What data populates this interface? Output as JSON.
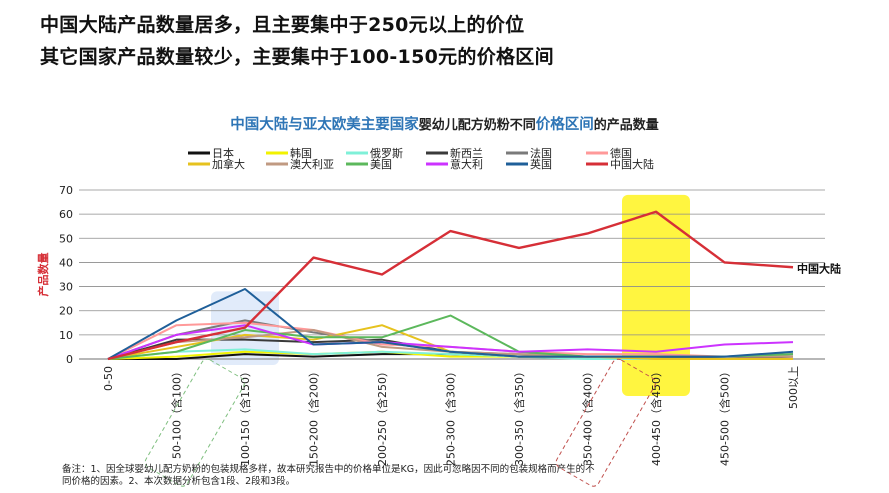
{
  "headline_1": "中国大陆产品数量居多，且主要集中于250元以上的价位",
  "headline_2": "其它国家产品数量较少，主要集中于100-150元的价格区间",
  "note": "备注：1、因全球婴幼儿配方奶粉的包装规格多样，故本研究报告中的价格单位是KG，因此可忽略因不同的包装规格而产生的不同价格的因素。2、本次数据分析包含1段、2段和3段。",
  "chart_data": {
    "type": "line",
    "title_parts": [
      {
        "text": "中国大陆与亚太欧美主要国家",
        "style": "blue"
      },
      {
        "text": "婴幼儿配方奶粉不同",
        "style": "plain"
      },
      {
        "text": "价格区间",
        "style": "blue"
      },
      {
        "text": "的产品数量",
        "style": "plain"
      }
    ],
    "ylabel": "产品数量",
    "xlabel": "",
    "ylim": [
      0,
      70
    ],
    "yticks": [
      0,
      10,
      20,
      30,
      40,
      50,
      60,
      70
    ],
    "grid": true,
    "legend_position": "top",
    "categories": [
      "0-50",
      "50-100（含100）",
      "100-150（含150）",
      "150-200（含200）",
      "200-250（含250）",
      "250-300（含300）",
      "300-350（含350）",
      "350-400（含400）",
      "400-450（含450）",
      "450-500（含500）",
      "500以上"
    ],
    "series": [
      {
        "name": "日本",
        "color": "#111111",
        "values": [
          0,
          0,
          2,
          1,
          2,
          2,
          1,
          1,
          1,
          0,
          0
        ]
      },
      {
        "name": "韩国",
        "color": "#f2f200",
        "values": [
          0,
          1,
          3,
          2,
          3,
          1,
          1,
          1,
          1,
          1,
          1
        ]
      },
      {
        "name": "俄罗斯",
        "color": "#7ff0d8",
        "values": [
          0,
          3,
          4,
          2,
          3,
          2,
          1,
          0,
          0,
          0,
          0
        ]
      },
      {
        "name": "新西兰",
        "color": "#3a3a3a",
        "values": [
          0,
          8,
          8,
          7,
          8,
          3,
          1,
          1,
          1,
          0,
          1
        ]
      },
      {
        "name": "法国",
        "color": "#7a7a7a",
        "values": [
          0,
          10,
          16,
          11,
          7,
          3,
          2,
          1,
          1,
          1,
          2
        ]
      },
      {
        "name": "德国",
        "color": "#ff9999",
        "values": [
          0,
          14,
          15,
          12,
          6,
          5,
          3,
          2,
          2,
          1,
          1
        ]
      },
      {
        "name": "加拿大",
        "color": "#e6c21e",
        "values": [
          0,
          5,
          10,
          8,
          14,
          3,
          1,
          1,
          0,
          0,
          0
        ]
      },
      {
        "name": "澳大利亚",
        "color": "#c09a82",
        "values": [
          0,
          7,
          9,
          12,
          5,
          3,
          2,
          1,
          1,
          1,
          1
        ]
      },
      {
        "name": "美国",
        "color": "#5cb85c",
        "values": [
          0,
          3,
          12,
          9,
          9,
          18,
          3,
          1,
          1,
          1,
          2
        ]
      },
      {
        "name": "意大利",
        "color": "#cc33ff",
        "values": [
          0,
          10,
          14,
          6,
          7,
          5,
          3,
          4,
          3,
          6,
          7
        ]
      },
      {
        "name": "英国",
        "color": "#1f5f99",
        "values": [
          0,
          16,
          29,
          6,
          7,
          3,
          1,
          1,
          1,
          1,
          3
        ]
      },
      {
        "name": "中国大陆",
        "color": "#d62f37",
        "values": [
          0,
          7,
          13,
          42,
          35,
          53,
          46,
          52,
          61,
          40,
          38
        ]
      }
    ],
    "annotations": [
      {
        "text": "中国大陆",
        "series": "中国大陆"
      }
    ],
    "highlights": [
      {
        "category_index": 2,
        "color": "#c9daf5"
      },
      {
        "category_index": 8,
        "color": "#fff200"
      }
    ]
  }
}
